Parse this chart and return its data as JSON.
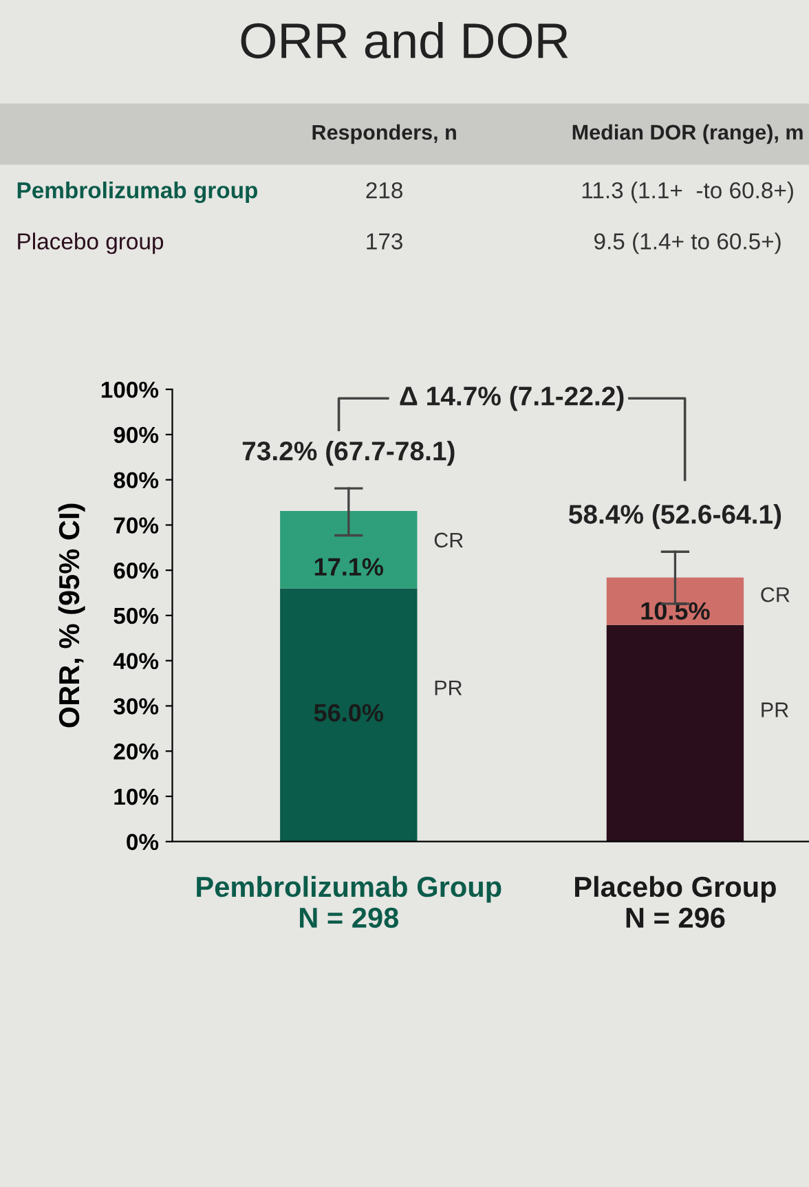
{
  "chart_data": {
    "type": "bar",
    "title": "ORR and DOR",
    "stacked": true,
    "categories": [
      "Pembrolizumab Group\nN = 298",
      "Placebo Group\nN = 296"
    ],
    "series": [
      {
        "name": "PR",
        "colors": [
          "#0b5c4a",
          "#2a0e1b"
        ],
        "values": [
          56.0,
          47.9
        ],
        "value_labels": [
          "56.0%",
          null
        ]
      },
      {
        "name": "CR",
        "colors": [
          "#2e9f7a",
          "#cf6f69"
        ],
        "values": [
          17.1,
          10.5
        ],
        "value_labels": [
          "17.1%",
          "10.5%"
        ],
        "errors": [
          [
            67.7,
            78.1
          ],
          [
            52.6,
            64.1
          ]
        ]
      }
    ],
    "ylabel": "ORR, % (95% CI)",
    "ylim": [
      0,
      100
    ],
    "yticks": [
      {
        "value": 0,
        "label": "0%"
      },
      {
        "value": 10,
        "label": "10%"
      },
      {
        "value": 20,
        "label": "20%"
      },
      {
        "value": 30,
        "label": "30%"
      },
      {
        "value": 40,
        "label": "40%"
      },
      {
        "value": 50,
        "label": "50%"
      },
      {
        "value": 60,
        "label": "60%"
      },
      {
        "value": 70,
        "label": "70%"
      },
      {
        "value": 80,
        "label": "80%"
      },
      {
        "value": 90,
        "label": "90%"
      },
      {
        "value": 100,
        "label": "100%"
      }
    ],
    "annotations": [
      "Responders, n",
      "Median DOR (range), m",
      "Pembrolizumab group",
      "218",
      "11.3 (1.1+  -to 60.8+)",
      "Placebo group",
      "173",
      "9.5 (1.4+ to 60.5+)",
      "73.2% (67.7-78.1)",
      "58.4% (52.6-64.1)",
      "Δ 14.7% (7.1-22.2)"
    ],
    "grid": false,
    "legend": false
  }
}
